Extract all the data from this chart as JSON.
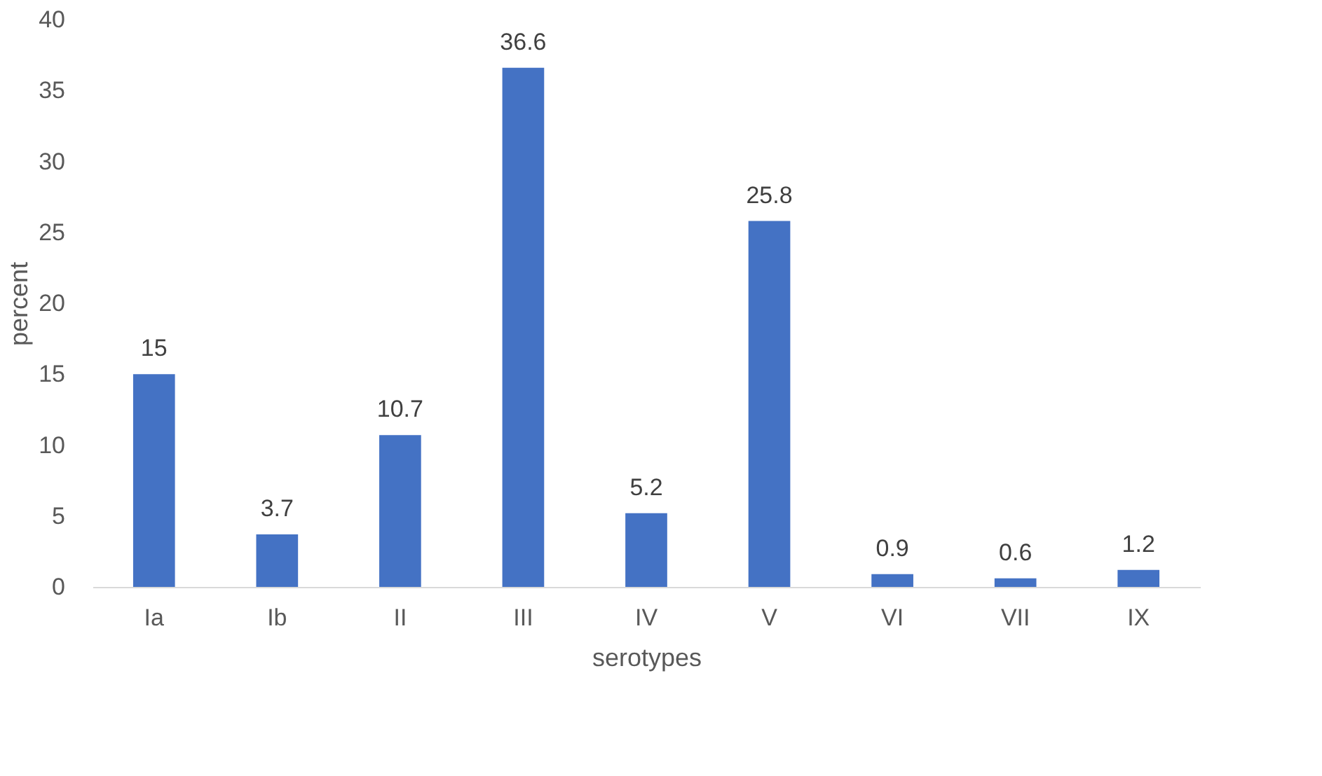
{
  "chart_data": {
    "type": "bar",
    "xlabel": "serotypes",
    "ylabel": "percent",
    "categories": [
      "Ia",
      "Ib",
      "II",
      "III",
      "IV",
      "V",
      "VI",
      "VII",
      "IX"
    ],
    "values": [
      15,
      3.7,
      10.7,
      36.6,
      5.2,
      25.8,
      0.9,
      0.6,
      1.2
    ],
    "color": "#4472c4",
    "ylim": [
      0,
      40
    ],
    "yticks": [
      0,
      5,
      10,
      15,
      20,
      25,
      30,
      35,
      40
    ],
    "grid": false,
    "data_labels": true
  }
}
